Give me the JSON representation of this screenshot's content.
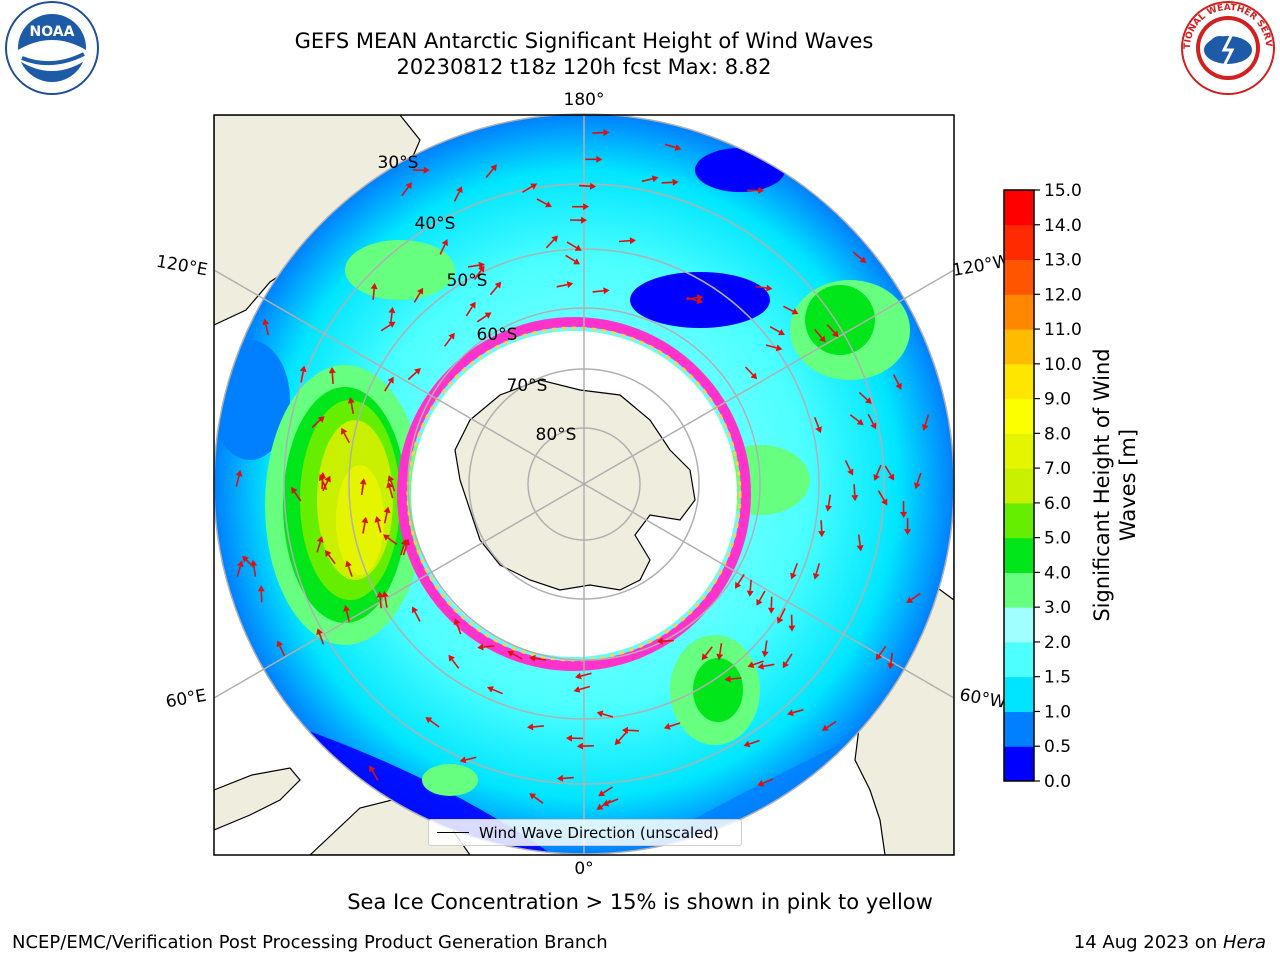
{
  "title": {
    "line1": "GEFS MEAN Antarctic Significant Height of Wind Waves",
    "line2": "20230812 t18z 120h fcst   Max: 8.82"
  },
  "logos": {
    "noaa": "NOAA",
    "nws": "NATIONAL WEATHER SERVICE"
  },
  "map": {
    "projection": "south-polar-stereographic",
    "lon_labels": {
      "top": "180°",
      "bottom": "0°",
      "upper_left": "120°E",
      "upper_right": "120°W",
      "lower_left": "60°E",
      "lower_right": "60°W"
    },
    "lat_labels": [
      "30°S",
      "40°S",
      "50°S",
      "60°S",
      "70°S",
      "80°S"
    ],
    "legend": "Wind Wave Direction (unscaled)",
    "land_color": "#efeddd",
    "ice_color_range": [
      "#ff33cc",
      "#ffd24d"
    ],
    "arrow_color": "#dd1111"
  },
  "colorbar": {
    "label": "Significant Height of Wind Waves [m]",
    "ticks": [
      "0.0",
      "0.5",
      "1.0",
      "1.5",
      "2.0",
      "3.0",
      "4.0",
      "5.0",
      "6.0",
      "7.0",
      "8.0",
      "9.0",
      "10.0",
      "11.0",
      "12.0",
      "13.0",
      "14.0",
      "15.0"
    ],
    "colors": [
      "#0000ff",
      "#0080ff",
      "#00e5ff",
      "#4dffff",
      "#a0ffff",
      "#66ff80",
      "#00e61a",
      "#66ee00",
      "#c8f000",
      "#e5f500",
      "#fbff00",
      "#ffe600",
      "#ffbb00",
      "#ff8800",
      "#ff5500",
      "#ff2a00",
      "#ff0000"
    ]
  },
  "caption": "Sea Ice Concentration > 15% is shown in pink to yellow",
  "footer": {
    "left": "NCEP/EMC/Verification Post Processing Product Generation Branch",
    "date": "14 Aug 2023 on ",
    "machine": "Hera"
  }
}
